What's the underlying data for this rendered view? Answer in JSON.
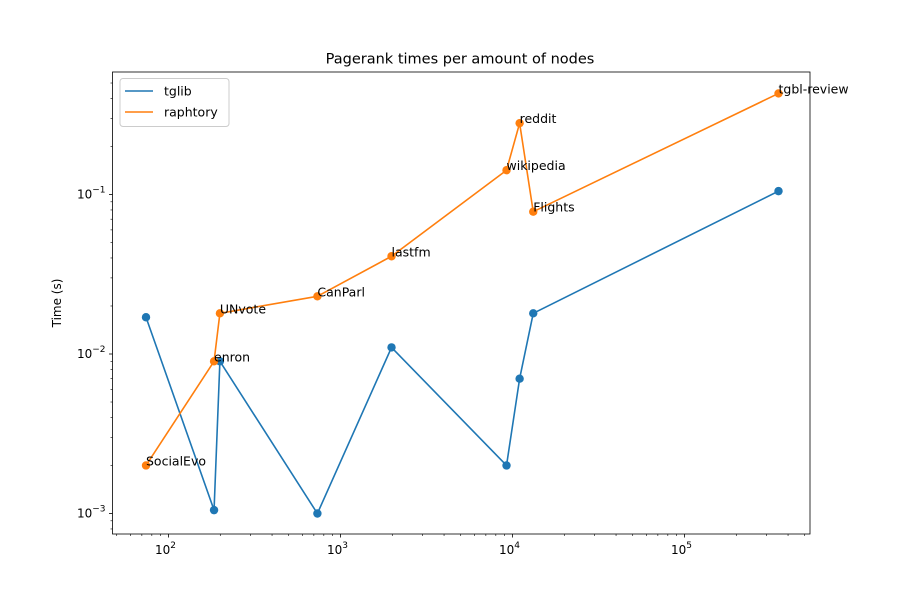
{
  "chart_data": {
    "type": "line",
    "title": "Pagerank times per amount of nodes",
    "xlabel": "",
    "ylabel": "Time (s)",
    "xscale": "log",
    "yscale": "log",
    "x_tick_labels": [
      {
        "base": "10",
        "exp": "2",
        "value": 100
      },
      {
        "base": "10",
        "exp": "3",
        "value": 1000
      },
      {
        "base": "10",
        "exp": "4",
        "value": 10000
      },
      {
        "base": "10",
        "exp": "5",
        "value": 100000
      }
    ],
    "y_tick_labels": [
      {
        "base": "10",
        "exp": "−3",
        "value": 0.001
      },
      {
        "base": "10",
        "exp": "−2",
        "value": 0.01
      },
      {
        "base": "10",
        "exp": "−1",
        "value": 0.1
      }
    ],
    "legend_position": "upper left",
    "grid": false,
    "series": [
      {
        "name": "tglib",
        "color": "#1f77b4",
        "x": [
          74,
          184,
          199,
          734,
          1980,
          9230,
          11000,
          13200,
          352000
        ],
        "y": [
          0.017,
          0.00105,
          0.009,
          0.001,
          0.011,
          0.002,
          0.007,
          0.018,
          0.105
        ]
      },
      {
        "name": "raphtory",
        "color": "#ff7f0e",
        "x": [
          74,
          184,
          199,
          734,
          1980,
          9230,
          11000,
          13200,
          352000
        ],
        "y": [
          0.002,
          0.009,
          0.018,
          0.023,
          0.041,
          0.142,
          0.28,
          0.078,
          0.43
        ]
      }
    ],
    "annotations": [
      {
        "text": "SocialEvo",
        "x": 74,
        "y": 0.002
      },
      {
        "text": "enron",
        "x": 184,
        "y": 0.009
      },
      {
        "text": "UNvote",
        "x": 199,
        "y": 0.018
      },
      {
        "text": "CanParl",
        "x": 734,
        "y": 0.023
      },
      {
        "text": "lastfm",
        "x": 1980,
        "y": 0.041
      },
      {
        "text": "wikipedia",
        "x": 9230,
        "y": 0.142
      },
      {
        "text": "reddit",
        "x": 11000,
        "y": 0.28
      },
      {
        "text": "Flights",
        "x": 13200,
        "y": 0.078
      },
      {
        "text": "tgbl-review",
        "x": 352000,
        "y": 0.43
      }
    ]
  }
}
